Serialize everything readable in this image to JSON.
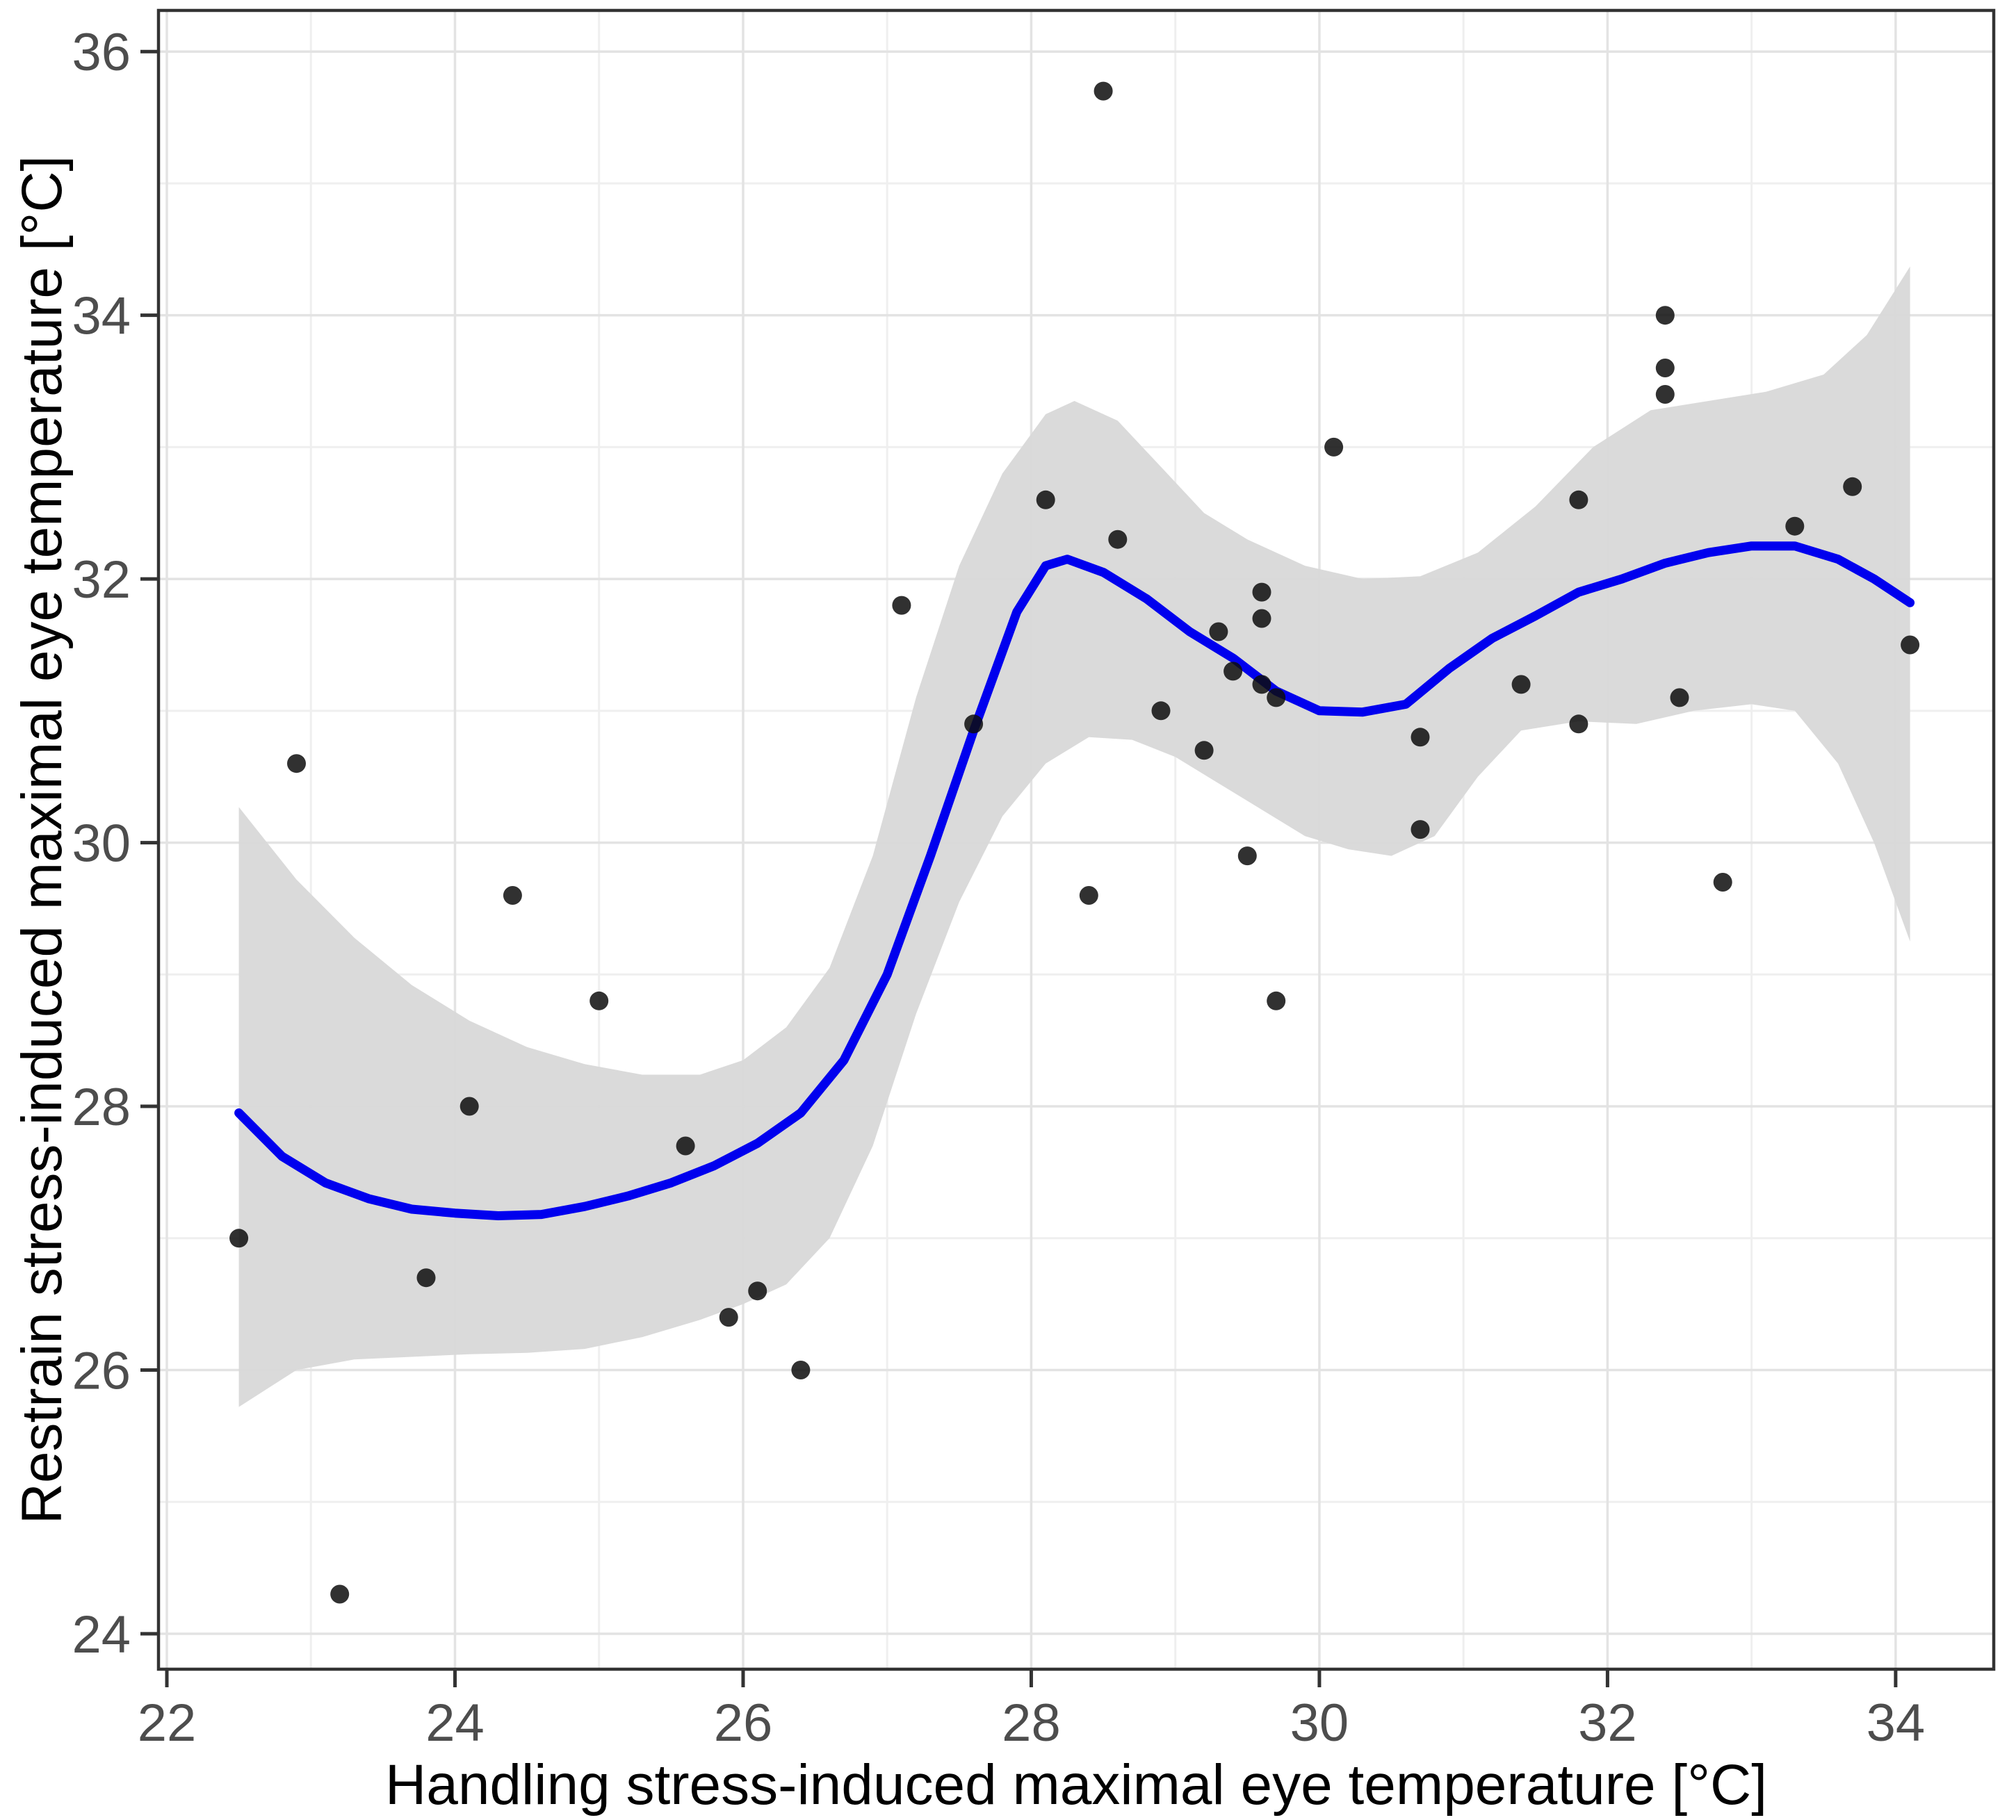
{
  "chart_data": {
    "type": "scatter",
    "title": "",
    "xlabel": "Handling stress-induced maximal eye temperature [°C]",
    "ylabel": "Restrain stress-induced maximal eye temperature [°C]",
    "xlim": [
      21.942,
      34.681
    ],
    "ylim": [
      23.731,
      36.312
    ],
    "x_ticks": [
      22,
      24,
      26,
      28,
      30,
      32,
      34
    ],
    "y_ticks": [
      24,
      26,
      28,
      30,
      32,
      34,
      36
    ],
    "x_minor": [
      23,
      25,
      27,
      29,
      31,
      33
    ],
    "y_minor": [
      25,
      27,
      29,
      31,
      33,
      35
    ],
    "grid": "major+minor",
    "legend": "none",
    "series": [
      {
        "name": "observations",
        "points": [
          [
            22.5,
            27.0
          ],
          [
            22.9,
            30.6
          ],
          [
            23.2,
            24.3
          ],
          [
            23.8,
            26.7
          ],
          [
            24.1,
            28.0
          ],
          [
            24.4,
            29.6
          ],
          [
            25.0,
            28.8
          ],
          [
            25.6,
            27.7
          ],
          [
            25.9,
            26.4
          ],
          [
            26.1,
            26.6
          ],
          [
            26.4,
            26.0
          ],
          [
            27.1,
            31.8
          ],
          [
            27.6,
            30.9
          ],
          [
            28.1,
            32.6
          ],
          [
            28.4,
            29.6
          ],
          [
            28.5,
            35.7
          ],
          [
            28.6,
            32.3
          ],
          [
            28.9,
            31.0
          ],
          [
            29.2,
            30.7
          ],
          [
            29.3,
            31.6
          ],
          [
            29.4,
            31.3
          ],
          [
            29.6,
            31.9
          ],
          [
            29.6,
            31.7
          ],
          [
            29.6,
            31.2
          ],
          [
            29.7,
            31.1
          ],
          [
            29.5,
            29.9
          ],
          [
            29.7,
            28.8
          ],
          [
            30.1,
            33.0
          ],
          [
            30.7,
            30.8
          ],
          [
            30.7,
            30.1
          ],
          [
            31.4,
            31.2
          ],
          [
            31.8,
            32.6
          ],
          [
            31.8,
            30.9
          ],
          [
            32.4,
            34.0
          ],
          [
            32.4,
            33.6
          ],
          [
            32.4,
            33.4
          ],
          [
            32.5,
            31.1
          ],
          [
            32.8,
            29.7
          ],
          [
            33.3,
            32.4
          ],
          [
            33.7,
            32.7
          ],
          [
            34.1,
            31.5
          ]
        ]
      }
    ],
    "smooth_line": [
      [
        22.5,
        27.95
      ],
      [
        22.8,
        27.62
      ],
      [
        23.1,
        27.42
      ],
      [
        23.4,
        27.3
      ],
      [
        23.7,
        27.22
      ],
      [
        24.0,
        27.19
      ],
      [
        24.3,
        27.17
      ],
      [
        24.6,
        27.18
      ],
      [
        24.9,
        27.24
      ],
      [
        25.2,
        27.32
      ],
      [
        25.5,
        27.42
      ],
      [
        25.8,
        27.55
      ],
      [
        26.1,
        27.72
      ],
      [
        26.4,
        27.95
      ],
      [
        26.7,
        28.35
      ],
      [
        27.0,
        29.0
      ],
      [
        27.3,
        29.9
      ],
      [
        27.6,
        30.85
      ],
      [
        27.9,
        31.75
      ],
      [
        28.1,
        32.1
      ],
      [
        28.25,
        32.15
      ],
      [
        28.5,
        32.05
      ],
      [
        28.8,
        31.85
      ],
      [
        29.1,
        31.6
      ],
      [
        29.4,
        31.4
      ],
      [
        29.7,
        31.15
      ],
      [
        30.0,
        31.0
      ],
      [
        30.3,
        30.99
      ],
      [
        30.6,
        31.05
      ],
      [
        30.9,
        31.32
      ],
      [
        31.2,
        31.55
      ],
      [
        31.5,
        31.72
      ],
      [
        31.8,
        31.9
      ],
      [
        32.1,
        32.0
      ],
      [
        32.4,
        32.12
      ],
      [
        32.7,
        32.2
      ],
      [
        33.0,
        32.25
      ],
      [
        33.3,
        32.25
      ],
      [
        33.6,
        32.15
      ],
      [
        33.85,
        32.0
      ],
      [
        34.1,
        31.82
      ]
    ],
    "ribbon_upper": [
      [
        22.5,
        30.27
      ],
      [
        22.9,
        29.72
      ],
      [
        23.3,
        29.28
      ],
      [
        23.7,
        28.92
      ],
      [
        24.1,
        28.65
      ],
      [
        24.5,
        28.45
      ],
      [
        24.9,
        28.32
      ],
      [
        25.3,
        28.24
      ],
      [
        25.7,
        28.24
      ],
      [
        26.0,
        28.35
      ],
      [
        26.3,
        28.6
      ],
      [
        26.6,
        29.05
      ],
      [
        26.9,
        29.9
      ],
      [
        27.2,
        31.1
      ],
      [
        27.5,
        32.1
      ],
      [
        27.8,
        32.8
      ],
      [
        28.1,
        33.25
      ],
      [
        28.3,
        33.35
      ],
      [
        28.6,
        33.2
      ],
      [
        28.9,
        32.85
      ],
      [
        29.2,
        32.5
      ],
      [
        29.5,
        32.3
      ],
      [
        29.9,
        32.1
      ],
      [
        30.3,
        32.0
      ],
      [
        30.7,
        32.02
      ],
      [
        31.1,
        32.2
      ],
      [
        31.5,
        32.55
      ],
      [
        31.9,
        33.0
      ],
      [
        32.3,
        33.28
      ],
      [
        32.7,
        33.35
      ],
      [
        33.1,
        33.42
      ],
      [
        33.5,
        33.55
      ],
      [
        33.8,
        33.85
      ],
      [
        34.1,
        34.37
      ]
    ],
    "ribbon_lower": [
      [
        22.5,
        25.72
      ],
      [
        22.9,
        26.0
      ],
      [
        23.3,
        26.08
      ],
      [
        23.7,
        26.1
      ],
      [
        24.1,
        26.12
      ],
      [
        24.5,
        26.13
      ],
      [
        24.9,
        26.16
      ],
      [
        25.3,
        26.25
      ],
      [
        25.7,
        26.38
      ],
      [
        26.0,
        26.5
      ],
      [
        26.3,
        26.65
      ],
      [
        26.6,
        27.0
      ],
      [
        26.9,
        27.7
      ],
      [
        27.2,
        28.7
      ],
      [
        27.5,
        29.55
      ],
      [
        27.8,
        30.2
      ],
      [
        28.1,
        30.6
      ],
      [
        28.4,
        30.8
      ],
      [
        28.7,
        30.78
      ],
      [
        29.0,
        30.65
      ],
      [
        29.3,
        30.45
      ],
      [
        29.6,
        30.25
      ],
      [
        29.9,
        30.05
      ],
      [
        30.2,
        29.95
      ],
      [
        30.5,
        29.9
      ],
      [
        30.8,
        30.05
      ],
      [
        31.1,
        30.5
      ],
      [
        31.4,
        30.85
      ],
      [
        31.8,
        30.92
      ],
      [
        32.2,
        30.9
      ],
      [
        32.6,
        31.0
      ],
      [
        33.0,
        31.05
      ],
      [
        33.3,
        31.0
      ],
      [
        33.6,
        30.6
      ],
      [
        33.85,
        30.0
      ],
      [
        34.1,
        29.25
      ]
    ],
    "colors": {
      "point": "#0d0d0d",
      "line": "#0000ee",
      "ribbon": "#d8d8d8",
      "grid_major": "#e3e3e3",
      "grid_minor": "#efefef",
      "axis": "#333333",
      "tick_label": "#4d4d4d",
      "axis_title": "#000000"
    }
  }
}
